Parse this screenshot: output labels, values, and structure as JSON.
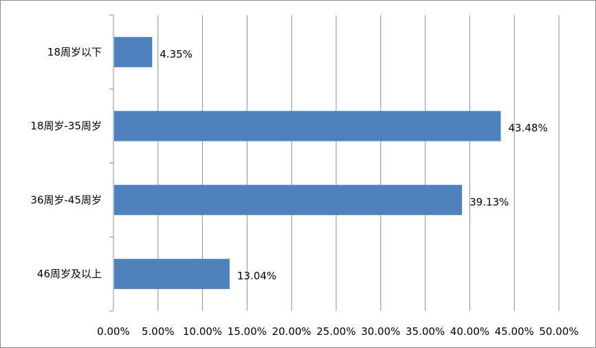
{
  "chart_data": {
    "type": "bar",
    "orientation": "horizontal",
    "categories": [
      "18周岁以下",
      "18周岁-35周岁",
      "36周岁-45周岁",
      "46周岁及以上"
    ],
    "values": [
      4.35,
      43.48,
      39.13,
      13.04
    ],
    "value_labels": [
      "4.35%",
      "43.48%",
      "39.13%",
      "13.04%"
    ],
    "x_ticks": [
      "0.00%",
      "5.00%",
      "10.00%",
      "15.00%",
      "20.00%",
      "25.00%",
      "30.00%",
      "35.00%",
      "40.00%",
      "45.00%",
      "50.00%"
    ],
    "xlim": [
      0,
      50
    ],
    "grid": "vertical",
    "legend": "none",
    "bar_color": "#4f81bd",
    "grid_color": "#8c8c8c"
  }
}
